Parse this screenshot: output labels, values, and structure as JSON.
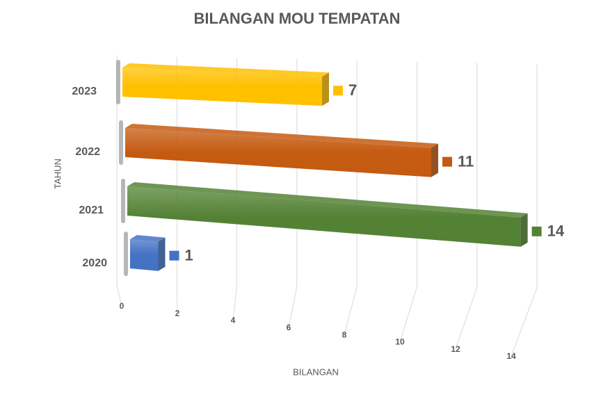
{
  "chart_data": {
    "type": "bar3d",
    "orientation": "horizontal",
    "title": "BILANGAN MOU TEMPATAN",
    "x_label": "BILANGAN",
    "y_label": "TAHUN",
    "categories": [
      "2020",
      "2021",
      "2022",
      "2023"
    ],
    "values": [
      1,
      14,
      11,
      7
    ],
    "colors": [
      "#4472c4",
      "#548235",
      "#c55a11",
      "#ffc000"
    ],
    "xlim": [
      0,
      14
    ],
    "xticks": [
      0,
      2,
      4,
      6,
      8,
      10,
      12,
      14
    ],
    "grid": true
  }
}
